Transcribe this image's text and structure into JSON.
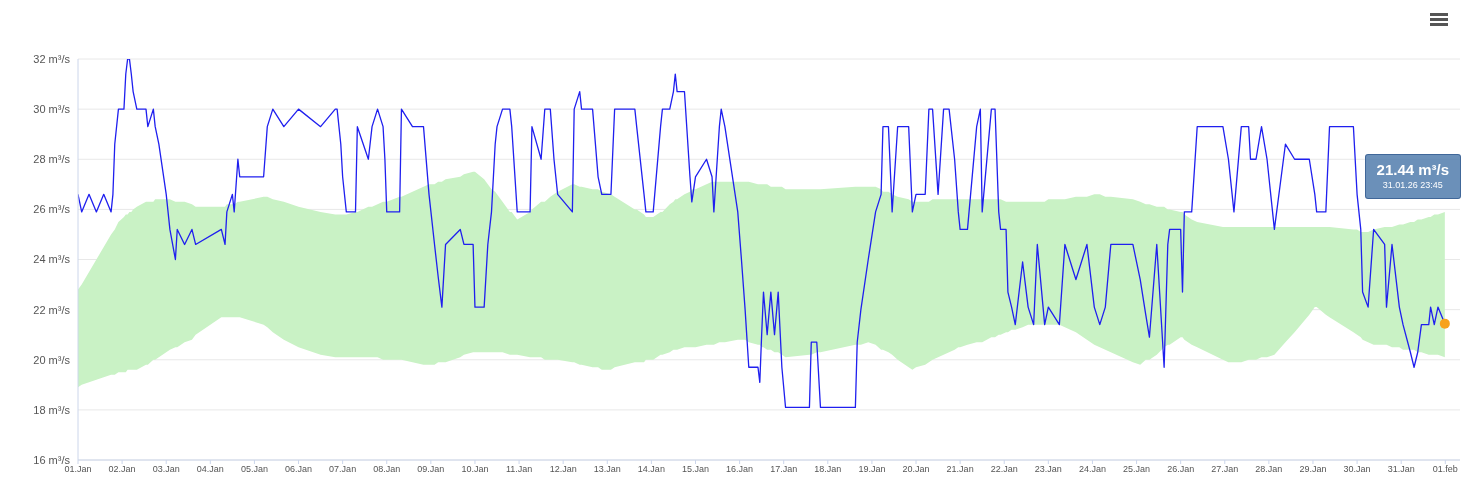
{
  "chart_data": {
    "type": "line",
    "grid": "y",
    "xlim": [
      "--01-01",
      "--02-01T08:00"
    ],
    "xticks": [
      {
        "value": "--01-01",
        "label": "01.Jan"
      },
      {
        "value": "--01-02",
        "label": "02.Jan"
      },
      {
        "value": "--01-03",
        "label": "03.Jan"
      },
      {
        "value": "--01-04",
        "label": "04.Jan"
      },
      {
        "value": "--01-05",
        "label": "05.Jan"
      },
      {
        "value": "--01-06",
        "label": "06.Jan"
      },
      {
        "value": "--01-07",
        "label": "07.Jan"
      },
      {
        "value": "--01-08",
        "label": "08.Jan"
      },
      {
        "value": "--01-09",
        "label": "09.Jan"
      },
      {
        "value": "--01-10",
        "label": "10.Jan"
      },
      {
        "value": "--01-11",
        "label": "11.Jan"
      },
      {
        "value": "--01-12",
        "label": "12.Jan"
      },
      {
        "value": "--01-13",
        "label": "13.Jan"
      },
      {
        "value": "--01-14",
        "label": "14.Jan"
      },
      {
        "value": "--01-15",
        "label": "15.Jan"
      },
      {
        "value": "--01-16",
        "label": "16.Jan"
      },
      {
        "value": "--01-17",
        "label": "17.Jan"
      },
      {
        "value": "--01-18",
        "label": "18.Jan"
      },
      {
        "value": "--01-19",
        "label": "19.Jan"
      },
      {
        "value": "--01-20",
        "label": "20.Jan"
      },
      {
        "value": "--01-21",
        "label": "21.Jan"
      },
      {
        "value": "--01-22",
        "label": "22.Jan"
      },
      {
        "value": "--01-23",
        "label": "23.Jan"
      },
      {
        "value": "--01-24",
        "label": "24.Jan"
      },
      {
        "value": "--01-25",
        "label": "25.Jan"
      },
      {
        "value": "--01-26",
        "label": "26.Jan"
      },
      {
        "value": "--01-27",
        "label": "27.Jan"
      },
      {
        "value": "--01-28",
        "label": "28.Jan"
      },
      {
        "value": "--01-29",
        "label": "29.Jan"
      },
      {
        "value": "--01-30",
        "label": "30.Jan"
      },
      {
        "value": "--01-31",
        "label": "31.Jan"
      },
      {
        "value": "--02-01",
        "label": "01.feb"
      }
    ],
    "ylim": [
      16,
      32
    ],
    "yticks": [
      {
        "value": 16,
        "label": "16 m³/s"
      },
      {
        "value": 18,
        "label": "18 m³/s"
      },
      {
        "value": 20,
        "label": "20 m³/s"
      },
      {
        "value": 22,
        "label": "22 m³/s"
      },
      {
        "value": 24,
        "label": "24 m³/s"
      },
      {
        "value": 26,
        "label": "26 m³/s"
      },
      {
        "value": 28,
        "label": "28 m³/s"
      },
      {
        "value": 30,
        "label": "30 m³/s"
      },
      {
        "value": 32,
        "label": "32 m³/s"
      }
    ],
    "annotations": [
      "21.44 m³/s",
      "31.01.26 23:45"
    ],
    "series": [
      {
        "type": "line",
        "color": "#1f1fef",
        "x": [
          "--01-01T00:00",
          "--01-01T02:00",
          "--01-01T06:00",
          "--01-01T10:00",
          "--01-01T14:00",
          "--01-01T18:00",
          "--01-01T19:00",
          "--01-01T20:00",
          "--01-01T22:00",
          "--01-02T01:00",
          "--01-02T02:00",
          "--01-02T03:00",
          "--01-02T04:00",
          "--01-02T05:00",
          "--01-02T06:00",
          "--01-02T08:00",
          "--01-02T13:00",
          "--01-02T14:00",
          "--01-02T17:00",
          "--01-02T18:00",
          "--01-02T20:00",
          "--01-03T00:00",
          "--01-03T02:00",
          "--01-03T05:00",
          "--01-03T06:00",
          "--01-03T10:00",
          "--01-03T14:00",
          "--01-03T16:00",
          "--01-04T06:00",
          "--01-04T08:00",
          "--01-04T09:00",
          "--01-04T12:00",
          "--01-04T13:00",
          "--01-04T15:00",
          "--01-04T16:00",
          "--01-05T05:00",
          "--01-05T07:00",
          "--01-05T10:00",
          "--01-05T16:00",
          "--01-06T00:00",
          "--01-06T12:00",
          "--01-06T20:00",
          "--01-06T21:00",
          "--01-06T23:00",
          "--01-07T00:00",
          "--01-07T02:00",
          "--01-07T07:00",
          "--01-07T08:00",
          "--01-07T14:00",
          "--01-07T16:00",
          "--01-07T19:00",
          "--01-07T22:00",
          "--01-07T23:00",
          "--01-08T00:00",
          "--01-08T07:00",
          "--01-08T08:00",
          "--01-08T14:00",
          "--01-08T20:00",
          "--01-08T23:00",
          "--01-09T02:00",
          "--01-09T04:00",
          "--01-09T06:00",
          "--01-09T08:00",
          "--01-09T16:00",
          "--01-09T18:00",
          "--01-09T23:00",
          "--01-10T00:00",
          "--01-10T05:00",
          "--01-10T07:00",
          "--01-10T09:00",
          "--01-10T11:00",
          "--01-10T12:00",
          "--01-10T15:00",
          "--01-10T19:00",
          "--01-10T20:00",
          "--01-10T23:00",
          "--01-11T06:00",
          "--01-11T07:00",
          "--01-11T12:00",
          "--01-11T14:00",
          "--01-11T17:00",
          "--01-11T19:00",
          "--01-11T21:00",
          "--01-12T05:00",
          "--01-12T06:00",
          "--01-12T09:00",
          "--01-12T10:00",
          "--01-12T16:00",
          "--01-12T19:00",
          "--01-12T21:00",
          "--01-13T02:00",
          "--01-13T04:00",
          "--01-13T15:00",
          "--01-13T16:00",
          "--01-13T20:00",
          "--01-13T21:00",
          "--01-14T01:00",
          "--01-14T05:00",
          "--01-14T06:00",
          "--01-14T10:00",
          "--01-14T12:00",
          "--01-14T13:00",
          "--01-14T14:00",
          "--01-14T18:00",
          "--01-14T21:00",
          "--01-14T22:00",
          "--01-15T00:00",
          "--01-15T06:00",
          "--01-15T09:00",
          "--01-15T10:00",
          "--01-15T13:00",
          "--01-15T14:00",
          "--01-15T16:00",
          "--01-15T23:00",
          "--01-16T01:00",
          "--01-16T03:00",
          "--01-16T05:00",
          "--01-16T10:00",
          "--01-16T11:00",
          "--01-16T12:00",
          "--01-16T13:00",
          "--01-16T15:00",
          "--01-16T17:00",
          "--01-16T19:00",
          "--01-16T21:00",
          "--01-16T23:00",
          "--01-17T01:00",
          "--01-17T14:00",
          "--01-17T15:00",
          "--01-17T18:00",
          "--01-17T20:00",
          "--01-18T15:00",
          "--01-18T16:00",
          "--01-18T18:00",
          "--01-18T22:00",
          "--01-19T02:00",
          "--01-19T05:00",
          "--01-19T06:00",
          "--01-19T09:00",
          "--01-19T11:00",
          "--01-19T14:00",
          "--01-19T20:00",
          "--01-19T22:00",
          "--01-20T00:00",
          "--01-20T05:00",
          "--01-20T07:00",
          "--01-20T09:00",
          "--01-20T12:00",
          "--01-20T15:00",
          "--01-20T18:00",
          "--01-20T21:00",
          "--01-20T23:00",
          "--01-21T00:00",
          "--01-21T04:00",
          "--01-21T09:00",
          "--01-21T11:00",
          "--01-21T12:00",
          "--01-21T17:00",
          "--01-21T19:00",
          "--01-21T21:00",
          "--01-21T22:00",
          "--01-22T01:00",
          "--01-22T02:00",
          "--01-22T04:00",
          "--01-22T06:00",
          "--01-22T10:00",
          "--01-22T13:00",
          "--01-22T16:00",
          "--01-22T18:00",
          "--01-22T22:00",
          "--01-23T00:00",
          "--01-23T06:00",
          "--01-23T09:00",
          "--01-23T15:00",
          "--01-23T21:00",
          "--01-24T01:00",
          "--01-24T04:00",
          "--01-24T07:00",
          "--01-24T10:00",
          "--01-24T22:00",
          "--01-25T02:00",
          "--01-25T05:00",
          "--01-25T07:00",
          "--01-25T11:00",
          "--01-25T15:00",
          "--01-25T17:00",
          "--01-25T18:00",
          "--01-26T00:00",
          "--01-26T01:00",
          "--01-26T02:00",
          "--01-26T06:00",
          "--01-26T09:00",
          "--01-26T23:00",
          "--01-27T02:00",
          "--01-27T05:00",
          "--01-27T09:00",
          "--01-27T13:00",
          "--01-27T14:00",
          "--01-27T17:00",
          "--01-27T20:00",
          "--01-27T23:00",
          "--01-28T03:00",
          "--01-28T09:00",
          "--01-28T14:00",
          "--01-28T22:00",
          "--01-29T01:00",
          "--01-29T02:00",
          "--01-29T07:00",
          "--01-29T09:00",
          "--01-29T22:00",
          "--01-30T00:00",
          "--01-30T02:00",
          "--01-30T03:00",
          "--01-30T06:00",
          "--01-30T09:00",
          "--01-30T15:00",
          "--01-30T16:00",
          "--01-30T19:00",
          "--01-30T23:00",
          "--01-31T01:00",
          "--01-31T05:00",
          "--01-31T07:00",
          "--01-31T09:00",
          "--01-31T11:00",
          "--01-31T15:00",
          "--01-31T16:00",
          "--01-31T18:00",
          "--01-31T20:00",
          "--01-31T23:45"
        ],
        "values": [
          26.6,
          25.9,
          26.6,
          25.9,
          26.6,
          25.9,
          26.6,
          28.6,
          30.0,
          30.0,
          31.4,
          32.0,
          32.0,
          31.4,
          30.7,
          30.0,
          30.0,
          29.3,
          30.0,
          29.3,
          28.6,
          26.6,
          25.2,
          24.0,
          25.2,
          24.6,
          25.2,
          24.6,
          25.2,
          24.6,
          25.9,
          26.6,
          25.9,
          28.0,
          27.3,
          27.3,
          29.3,
          30.0,
          29.3,
          30.0,
          29.3,
          30.0,
          30.0,
          28.6,
          27.3,
          25.9,
          25.9,
          29.3,
          28.0,
          29.3,
          30.0,
          29.3,
          28.0,
          25.9,
          25.9,
          30.0,
          29.3,
          29.3,
          26.6,
          24.6,
          23.3,
          22.1,
          24.6,
          25.2,
          24.6,
          24.6,
          22.1,
          22.1,
          24.6,
          25.9,
          28.6,
          29.3,
          30.0,
          30.0,
          29.3,
          25.9,
          25.9,
          29.3,
          28.0,
          30.0,
          30.0,
          28.0,
          26.6,
          25.9,
          30.0,
          30.7,
          30.0,
          30.0,
          27.3,
          26.6,
          26.6,
          30.0,
          30.0,
          29.3,
          26.6,
          25.9,
          25.9,
          29.3,
          30.0,
          30.0,
          30.7,
          31.4,
          30.7,
          30.7,
          27.3,
          26.3,
          27.3,
          28.0,
          27.3,
          25.9,
          29.3,
          30.0,
          29.3,
          25.9,
          24.0,
          22.0,
          19.7,
          19.7,
          19.1,
          21.0,
          22.7,
          21.0,
          22.7,
          21.0,
          22.7,
          19.7,
          18.1,
          18.1,
          20.7,
          20.7,
          18.1,
          18.1,
          20.7,
          22.0,
          24.0,
          25.9,
          26.6,
          29.3,
          29.3,
          25.9,
          29.3,
          29.3,
          25.9,
          26.6,
          26.6,
          30.0,
          30.0,
          26.6,
          30.0,
          30.0,
          28.0,
          25.9,
          25.2,
          25.2,
          29.3,
          30.0,
          25.9,
          30.0,
          30.0,
          25.9,
          25.2,
          25.2,
          22.7,
          22.1,
          21.4,
          23.9,
          22.1,
          21.4,
          24.6,
          21.4,
          22.1,
          21.4,
          24.6,
          23.2,
          24.6,
          22.1,
          21.4,
          22.1,
          24.6,
          24.6,
          23.2,
          21.8,
          20.9,
          24.6,
          19.7,
          24.6,
          25.2,
          25.2,
          22.7,
          25.9,
          25.9,
          29.3,
          29.3,
          28.0,
          25.9,
          29.3,
          29.3,
          28.0,
          28.0,
          29.3,
          28.0,
          25.2,
          28.6,
          28.0,
          28.0,
          26.6,
          25.9,
          25.9,
          29.3,
          29.3,
          26.6,
          25.2,
          22.7,
          22.1,
          25.2,
          24.6,
          22.1,
          24.6,
          22.1,
          21.4,
          20.3,
          19.7,
          20.3,
          21.4,
          21.4,
          22.1,
          21.4,
          22.1,
          21.44
        ],
        "lower": [
          18.9,
          19.0,
          19.1,
          19.2,
          19.3,
          19.4,
          19.4,
          19.4,
          19.5,
          19.5,
          19.5,
          19.6,
          19.6,
          19.6,
          19.6,
          19.6,
          19.8,
          19.8,
          20.0,
          20.0,
          20.1,
          20.3,
          20.4,
          20.5,
          20.5,
          20.7,
          20.8,
          21.0,
          21.7,
          21.7,
          21.7,
          21.7,
          21.7,
          21.7,
          21.7,
          21.4,
          21.3,
          21.1,
          20.8,
          20.5,
          20.2,
          20.1,
          20.1,
          20.1,
          20.1,
          20.1,
          20.1,
          20.1,
          20.1,
          20.1,
          20.1,
          20.0,
          20.0,
          20.0,
          20.0,
          20.0,
          19.9,
          19.8,
          19.8,
          19.8,
          19.9,
          19.9,
          19.9,
          20.1,
          20.2,
          20.3,
          20.3,
          20.3,
          20.3,
          20.3,
          20.3,
          20.3,
          20.3,
          20.2,
          20.2,
          20.2,
          20.1,
          20.1,
          20.1,
          20.0,
          20.0,
          20.0,
          20.0,
          19.9,
          19.9,
          19.8,
          19.8,
          19.7,
          19.7,
          19.6,
          19.6,
          19.7,
          19.9,
          19.9,
          19.9,
          20.0,
          20.0,
          20.2,
          20.2,
          20.3,
          20.4,
          20.4,
          20.4,
          20.5,
          20.5,
          20.5,
          20.5,
          20.6,
          20.6,
          20.6,
          20.7,
          20.7,
          20.7,
          20.8,
          20.8,
          20.8,
          20.7,
          20.6,
          20.6,
          20.5,
          20.5,
          20.4,
          20.4,
          20.3,
          20.3,
          20.2,
          20.1,
          20.2,
          20.2,
          20.3,
          20.3,
          20.6,
          20.6,
          20.6,
          20.7,
          20.6,
          20.4,
          20.4,
          20.3,
          20.2,
          20.0,
          19.7,
          19.6,
          19.7,
          19.8,
          19.9,
          20.0,
          20.1,
          20.2,
          20.3,
          20.4,
          20.5,
          20.5,
          20.6,
          20.7,
          20.7,
          20.7,
          20.9,
          20.9,
          21.0,
          21.0,
          21.1,
          21.1,
          21.2,
          21.2,
          21.3,
          21.4,
          21.4,
          21.4,
          21.4,
          21.4,
          21.4,
          21.3,
          21.1,
          20.8,
          20.6,
          20.5,
          20.4,
          20.3,
          19.9,
          19.8,
          20.0,
          20.0,
          20.2,
          20.5,
          20.6,
          20.6,
          20.9,
          20.9,
          20.8,
          20.6,
          20.5,
          20.0,
          19.9,
          19.9,
          19.9,
          20.0,
          20.0,
          20.0,
          20.1,
          20.1,
          20.2,
          20.7,
          21.1,
          21.8,
          22.1,
          22.1,
          21.8,
          21.7,
          21.1,
          21.0,
          20.9,
          20.8,
          20.7,
          20.6,
          20.6,
          20.6,
          20.5,
          20.5,
          20.4,
          20.4,
          20.4,
          20.3,
          20.3,
          20.2,
          20.2,
          20.2,
          20.2,
          20.1
        ],
        "upper": [
          22.8,
          23.0,
          23.5,
          24.0,
          24.5,
          25.0,
          25.1,
          25.2,
          25.5,
          25.7,
          25.8,
          25.8,
          25.9,
          25.9,
          26.0,
          26.1,
          26.3,
          26.3,
          26.3,
          26.4,
          26.4,
          26.4,
          26.4,
          26.3,
          26.3,
          26.3,
          26.2,
          26.1,
          26.1,
          26.1,
          26.2,
          26.2,
          26.2,
          26.3,
          26.3,
          26.5,
          26.5,
          26.4,
          26.3,
          26.1,
          25.9,
          25.8,
          25.8,
          25.8,
          25.8,
          25.8,
          25.9,
          25.9,
          26.1,
          26.1,
          26.2,
          26.3,
          26.3,
          26.3,
          26.5,
          26.5,
          26.7,
          26.9,
          27.0,
          27.0,
          27.1,
          27.1,
          27.2,
          27.3,
          27.4,
          27.5,
          27.5,
          27.2,
          27.0,
          26.8,
          26.7,
          26.6,
          26.3,
          25.9,
          25.9,
          25.6,
          25.9,
          26.0,
          26.3,
          26.3,
          26.5,
          26.6,
          26.7,
          27.0,
          27.0,
          26.9,
          26.9,
          26.8,
          26.8,
          26.7,
          26.6,
          26.5,
          26.0,
          26.0,
          25.8,
          25.7,
          25.7,
          25.9,
          25.9,
          26.2,
          26.3,
          26.4,
          26.4,
          26.6,
          26.7,
          26.8,
          26.8,
          27.0,
          27.1,
          27.1,
          27.1,
          27.1,
          27.1,
          27.1,
          27.1,
          27.1,
          27.1,
          27.0,
          27.0,
          27.0,
          27.0,
          27.0,
          26.9,
          26.9,
          26.9,
          26.9,
          26.8,
          26.8,
          26.8,
          26.8,
          26.8,
          26.9,
          26.9,
          26.9,
          26.9,
          26.9,
          26.8,
          26.7,
          26.7,
          26.6,
          26.5,
          26.4,
          26.3,
          26.3,
          26.3,
          26.3,
          26.4,
          26.4,
          26.4,
          26.4,
          26.4,
          26.4,
          26.4,
          26.4,
          26.4,
          26.4,
          26.4,
          26.4,
          26.4,
          26.4,
          26.4,
          26.3,
          26.3,
          26.3,
          26.3,
          26.3,
          26.3,
          26.3,
          26.3,
          26.3,
          26.4,
          26.4,
          26.4,
          26.5,
          26.5,
          26.6,
          26.6,
          26.5,
          26.5,
          26.4,
          26.3,
          26.2,
          26.2,
          26.1,
          26.1,
          26.0,
          26.0,
          25.9,
          25.9,
          25.8,
          25.6,
          25.5,
          25.3,
          25.3,
          25.3,
          25.3,
          25.3,
          25.3,
          25.3,
          25.3,
          25.3,
          25.3,
          25.3,
          25.3,
          25.3,
          25.3,
          25.3,
          25.3,
          25.3,
          25.2,
          25.2,
          25.1,
          25.1,
          25.1,
          25.2,
          25.3,
          25.3,
          25.3,
          25.4,
          25.4,
          25.5,
          25.5,
          25.6,
          25.6,
          25.7,
          25.7,
          25.8,
          25.8,
          25.9
        ]
      },
      {
        "type": "scatter",
        "color": "#f7a21b",
        "x": [
          "--01-31T23:45"
        ],
        "values": [
          21.44
        ]
      }
    ]
  }
}
